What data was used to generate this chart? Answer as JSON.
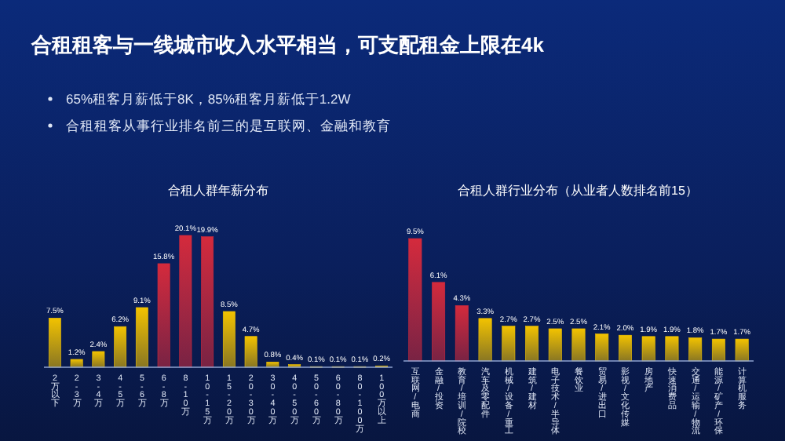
{
  "chart_data": [
    {
      "type": "other",
      "title": "合租租客与一线城市收入水平相当，可支配租金上限在4k",
      "annotations": [
        "65%租客月薪低于8K，85%租客月薪低于1.2W",
        "合租租客从事行业排名前三的是互联网、金融和教育"
      ]
    },
    {
      "type": "bar",
      "title": "合租人群年薪分布",
      "data_labels": true,
      "value_labels": [
        "7.5%",
        "1.2%",
        "2.4%",
        "6.2%",
        "9.1%",
        "15.8%",
        "20.1%",
        "19.9%",
        "8.5%",
        "4.7%",
        "0.8%",
        "0.4%",
        "0.1%",
        "0.1%",
        "0.1%",
        "0.2%"
      ],
      "categories": [
        "2万以下",
        "2-3万",
        "3-4万",
        "4-5万",
        "5-6万",
        "6-8万",
        "8-10万",
        "10-15万",
        "15-20万",
        "20-30万",
        "30-40万",
        "40-50万",
        "50-60万",
        "60-80万",
        "80-100万",
        "100万以上"
      ],
      "values": [
        7.5,
        1.2,
        2.4,
        6.2,
        9.1,
        15.8,
        20.1,
        19.9,
        8.5,
        4.7,
        0.8,
        0.4,
        0.1,
        0.1,
        0.1,
        0.2
      ],
      "colors": [
        "#f2c200",
        "#f2c200",
        "#f2c200",
        "#f2c200",
        "#f2c200",
        "#d42a3c",
        "#d42a3c",
        "#d42a3c",
        "#f2c200",
        "#f2c200",
        "#f2c200",
        "#f2c200",
        "#f2c200",
        "#f2c200",
        "#f2c200",
        "#f2c200"
      ]
    },
    {
      "type": "bar",
      "title": "合租人群行业分布（从业者人数排名前15）",
      "data_labels": true,
      "value_labels": [
        "9.5%",
        "6.1%",
        "4.3%",
        "3.3%",
        "2.7%",
        "2.7%",
        "2.5%",
        "2.5%",
        "2.1%",
        "2.0%",
        "1.9%",
        "1.9%",
        "1.8%",
        "1.7%",
        "1.7%"
      ],
      "categories": [
        "互联网/电商",
        "金融/投资",
        "教育/培训/院校",
        "汽车及零配件",
        "机械/设备/重工",
        "建筑/建材",
        "电子技术/半导体",
        "餐饮业",
        "贸易/进出口",
        "影视/文化传媒",
        "房地产",
        "快速消费品",
        "交通/运输/物流",
        "能源/矿产/环保",
        "计算机服务"
      ],
      "values": [
        9.5,
        6.1,
        4.3,
        3.3,
        2.7,
        2.7,
        2.5,
        2.5,
        2.1,
        2.0,
        1.9,
        1.9,
        1.8,
        1.7,
        1.7
      ],
      "colors": [
        "#d42a3c",
        "#d42a3c",
        "#d42a3c",
        "#f2c200",
        "#f2c200",
        "#f2c200",
        "#f2c200",
        "#f2c200",
        "#f2c200",
        "#f2c200",
        "#f2c200",
        "#f2c200",
        "#f2c200",
        "#f2c200",
        "#f2c200"
      ]
    }
  ]
}
